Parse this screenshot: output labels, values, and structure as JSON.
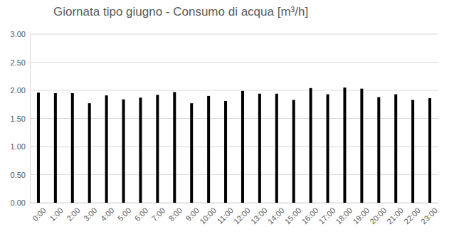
{
  "chart_data": {
    "type": "bar",
    "title": "Giornata tipo giugno - Consumo di acqua [m³/h]",
    "categories": [
      "0:00",
      "1:00",
      "2:00",
      "3:00",
      "4:00",
      "5:00",
      "6:00",
      "7:00",
      "8:00",
      "9:00",
      "10:00",
      "11:00",
      "12:00",
      "13:00",
      "14:00",
      "15:00",
      "16:00",
      "17:00",
      "18:00",
      "19:00",
      "20:00",
      "21:00",
      "22:00",
      "23:00"
    ],
    "values": [
      1.96,
      1.95,
      1.95,
      1.77,
      1.91,
      1.84,
      1.87,
      1.92,
      1.97,
      1.77,
      1.9,
      1.81,
      1.99,
      1.94,
      1.94,
      1.83,
      2.04,
      1.93,
      2.05,
      2.03,
      1.88,
      1.93,
      1.83,
      1.86
    ],
    "color": "#000000",
    "ylim": [
      0,
      3
    ],
    "yticks": [
      {
        "value": 0,
        "label": "0.00"
      },
      {
        "value": 0.5,
        "label": "0.50"
      },
      {
        "value": 1,
        "label": "1.00"
      },
      {
        "value": 1.5,
        "label": "1.50"
      },
      {
        "value": 2,
        "label": "2.00"
      },
      {
        "value": 2.5,
        "label": "2.50"
      },
      {
        "value": 3,
        "label": "3.00"
      }
    ],
    "grid": true
  }
}
